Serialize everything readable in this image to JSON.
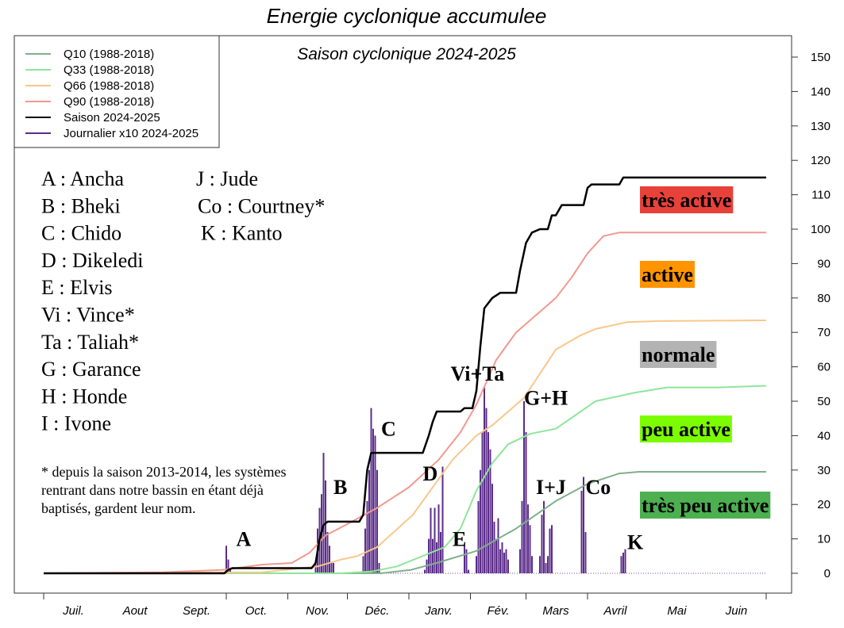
{
  "chart_data": {
    "type": "line",
    "title": "Energie cyclonique accumulee",
    "subtitle": "Saison cyclonique 2024-2025",
    "xlabel": "",
    "ylabel": "",
    "x_unit": "day of season (0 = 1 July)",
    "xlim": [
      0,
      364
    ],
    "ylim": [
      0,
      150
    ],
    "yticks": [
      0,
      10,
      20,
      30,
      40,
      50,
      60,
      70,
      80,
      90,
      100,
      110,
      120,
      130,
      140,
      150
    ],
    "month_ticks_days": [
      0,
      92,
      123,
      153,
      184,
      215,
      243,
      274,
      364
    ],
    "months": [
      {
        "label": "Juil.",
        "mid": 15
      },
      {
        "label": "Aout",
        "mid": 46
      },
      {
        "label": "Sept.",
        "mid": 77
      },
      {
        "label": "Oct.",
        "mid": 107
      },
      {
        "label": "Nov.",
        "mid": 138
      },
      {
        "label": "Déc.",
        "mid": 168
      },
      {
        "label": "Janv.",
        "mid": 199
      },
      {
        "label": "Fév.",
        "mid": 229
      },
      {
        "label": "Mars",
        "mid": 258
      },
      {
        "label": "Avril",
        "mid": 288
      },
      {
        "label": "Mai",
        "mid": 319
      },
      {
        "label": "Juin",
        "mid": 349
      }
    ],
    "legend_position": "top-left",
    "series": [
      {
        "name": "Q10 (1988-2018)",
        "color": "#7fb08a",
        "points": [
          [
            0,
            0
          ],
          [
            170,
            0
          ],
          [
            185,
            1
          ],
          [
            198,
            3
          ],
          [
            218,
            6.5
          ],
          [
            238,
            13
          ],
          [
            258,
            21
          ],
          [
            274,
            26
          ],
          [
            290,
            29
          ],
          [
            300,
            29.5
          ],
          [
            364,
            29.5
          ]
        ]
      },
      {
        "name": "Q33 (1988-2018)",
        "color": "#8ee59a",
        "points": [
          [
            0,
            0
          ],
          [
            150,
            0
          ],
          [
            165,
            0.5
          ],
          [
            178,
            2
          ],
          [
            202,
            7.6
          ],
          [
            210,
            13
          ],
          [
            218,
            24
          ],
          [
            226,
            32
          ],
          [
            234,
            37.5
          ],
          [
            245,
            40.5
          ],
          [
            258,
            42
          ],
          [
            268,
            46
          ],
          [
            278,
            50
          ],
          [
            298,
            52.5
          ],
          [
            314,
            54
          ],
          [
            340,
            54
          ],
          [
            364,
            54.5
          ]
        ]
      },
      {
        "name": "Q66 (1988-2018)",
        "color": "#f9c78a",
        "points": [
          [
            0,
            0
          ],
          [
            110,
            0.3
          ],
          [
            138,
            2
          ],
          [
            150,
            4
          ],
          [
            158,
            5
          ],
          [
            168,
            7.6
          ],
          [
            186,
            17
          ],
          [
            206,
            33
          ],
          [
            218,
            40
          ],
          [
            226,
            43
          ],
          [
            242,
            51
          ],
          [
            250,
            58
          ],
          [
            258,
            65
          ],
          [
            270,
            69
          ],
          [
            278,
            71
          ],
          [
            294,
            73
          ],
          [
            310,
            73.3
          ],
          [
            364,
            73.5
          ]
        ]
      },
      {
        "name": "Q90 (1988-2018)",
        "color": "#f2988f",
        "points": [
          [
            0,
            0
          ],
          [
            60,
            0.3
          ],
          [
            90,
            1
          ],
          [
            110,
            2.5
          ],
          [
            125,
            3
          ],
          [
            134,
            6
          ],
          [
            142,
            11
          ],
          [
            152,
            14
          ],
          [
            168,
            19
          ],
          [
            184,
            25
          ],
          [
            199,
            33
          ],
          [
            210,
            41
          ],
          [
            218,
            49
          ],
          [
            228,
            62
          ],
          [
            238,
            70
          ],
          [
            248,
            75
          ],
          [
            258,
            80
          ],
          [
            266,
            86
          ],
          [
            274,
            93
          ],
          [
            282,
            98
          ],
          [
            290,
            99
          ],
          [
            364,
            99
          ]
        ]
      },
      {
        "name": "Saison 2024-2025",
        "color": "#000000",
        "points": [
          [
            0,
            0
          ],
          [
            91,
            0
          ],
          [
            93,
            1
          ],
          [
            95,
            1.5
          ],
          [
            135,
            1.5
          ],
          [
            137,
            3
          ],
          [
            139,
            10
          ],
          [
            141,
            14
          ],
          [
            143,
            15
          ],
          [
            159,
            15
          ],
          [
            161,
            17
          ],
          [
            163,
            30
          ],
          [
            165,
            35
          ],
          [
            191,
            35
          ],
          [
            194,
            40
          ],
          [
            196,
            44
          ],
          [
            198,
            47
          ],
          [
            210,
            47
          ],
          [
            212,
            48
          ],
          [
            216,
            48
          ],
          [
            218,
            53
          ],
          [
            220,
            66
          ],
          [
            222,
            77
          ],
          [
            226,
            80
          ],
          [
            230,
            81.5
          ],
          [
            238,
            81.5
          ],
          [
            240,
            88
          ],
          [
            243,
            96
          ],
          [
            246,
            99
          ],
          [
            250,
            100
          ],
          [
            254,
            100
          ],
          [
            256,
            104
          ],
          [
            258,
            104
          ],
          [
            261,
            107
          ],
          [
            272,
            107
          ],
          [
            274,
            112
          ],
          [
            276,
            113
          ],
          [
            290,
            113
          ],
          [
            292,
            115
          ],
          [
            364,
            115
          ]
        ]
      },
      {
        "name": "Journalier x10 2024-2025",
        "color": "#5b2c8a",
        "type": "bar",
        "points": [
          [
            92,
            8
          ],
          [
            93,
            4
          ],
          [
            94,
            1.5
          ],
          [
            137,
            3
          ],
          [
            138,
            13
          ],
          [
            139,
            19
          ],
          [
            140,
            23
          ],
          [
            141,
            35
          ],
          [
            142,
            27
          ],
          [
            143,
            12
          ],
          [
            144,
            8
          ],
          [
            145,
            3
          ],
          [
            146,
            3
          ],
          [
            161,
            5
          ],
          [
            162,
            13
          ],
          [
            163,
            21
          ],
          [
            164,
            30
          ],
          [
            165,
            48
          ],
          [
            166,
            42
          ],
          [
            167,
            40
          ],
          [
            168,
            30
          ],
          [
            169,
            3
          ],
          [
            192,
            1
          ],
          [
            193,
            4
          ],
          [
            194,
            10
          ],
          [
            195,
            19
          ],
          [
            196,
            10
          ],
          [
            197,
            19
          ],
          [
            198,
            9
          ],
          [
            199,
            20
          ],
          [
            200,
            12
          ],
          [
            201,
            31
          ],
          [
            212,
            8
          ],
          [
            213,
            7
          ],
          [
            214,
            1
          ],
          [
            218,
            5
          ],
          [
            219,
            21
          ],
          [
            220,
            30
          ],
          [
            221,
            41
          ],
          [
            222,
            54
          ],
          [
            223,
            48
          ],
          [
            224,
            41
          ],
          [
            225,
            36
          ],
          [
            226,
            26
          ],
          [
            227,
            15
          ],
          [
            228,
            10
          ],
          [
            229,
            16
          ],
          [
            230,
            7
          ],
          [
            231,
            9
          ],
          [
            232,
            6
          ],
          [
            233,
            7
          ],
          [
            234,
            4
          ],
          [
            240,
            7
          ],
          [
            241,
            21
          ],
          [
            242,
            50
          ],
          [
            243,
            41
          ],
          [
            244,
            20
          ],
          [
            245,
            14
          ],
          [
            246,
            5
          ],
          [
            250,
            5
          ],
          [
            251,
            17
          ],
          [
            252,
            21
          ],
          [
            253,
            3
          ],
          [
            254,
            5
          ],
          [
            255,
            13
          ],
          [
            256,
            14
          ],
          [
            271,
            24
          ],
          [
            272,
            28
          ],
          [
            273,
            12
          ],
          [
            291,
            5
          ],
          [
            292,
            6
          ],
          [
            293,
            7
          ]
        ]
      }
    ],
    "annotations": [
      {
        "text": "A",
        "day": 97,
        "y": 8
      },
      {
        "text": "B",
        "day": 146,
        "y": 23
      },
      {
        "text": "C",
        "day": 170,
        "y": 40
      },
      {
        "text": "D",
        "day": 191,
        "y": 27
      },
      {
        "text": "E",
        "day": 206,
        "y": 8
      },
      {
        "text": "Vi+Ta",
        "day": 205,
        "y": 56
      },
      {
        "text": "G+H",
        "day": 242,
        "y": 49
      },
      {
        "text": "I+J",
        "day": 248,
        "y": 23
      },
      {
        "text": "Co",
        "day": 273,
        "y": 23
      },
      {
        "text": "K",
        "day": 294,
        "y": 7
      }
    ],
    "categories": [
      {
        "label": "très active",
        "color": "#e8413a"
      },
      {
        "label": "active",
        "color": "#ff9400"
      },
      {
        "label": "normale",
        "color": "#b3b3b3"
      },
      {
        "label": "peu active",
        "color": "#7cfc00"
      },
      {
        "label": "très peu active",
        "color": "#4caf50"
      }
    ]
  },
  "storm_names_left": [
    "A : Ancha",
    "B : Bheki",
    "C : Chido",
    "D : Dikeledi",
    "E : Elvis",
    "Vi : Vince*",
    "Ta : Taliah*",
    "G : Garance",
    "H : Honde",
    "I : Ivone"
  ],
  "storm_names_right": [
    "J : Jude",
    "Co : Courtney*",
    "K : Kanto"
  ],
  "footnote": [
    "* depuis la saison 2013-2014, les systèmes",
    "rentrant dans notre bassin en étant déjà",
    "baptisés, gardent leur nom."
  ]
}
